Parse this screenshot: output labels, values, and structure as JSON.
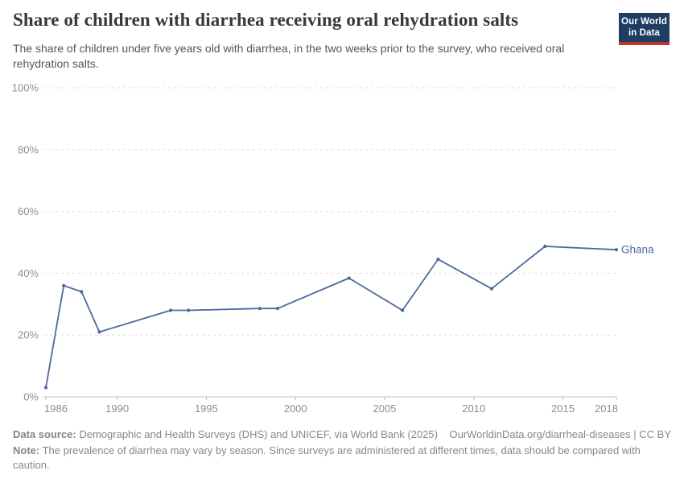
{
  "header": {
    "title": "Share of children with diarrhea receiving oral rehydration salts",
    "subtitle": "The share of children under five years old with diarrhea, in the two weeks prior to the survey, who received oral rehydration salts.",
    "logo": {
      "line1": "Our World",
      "line2": "in Data"
    }
  },
  "chart_data": {
    "type": "line",
    "title": "Share of children with diarrhea receiving oral rehydration salts",
    "x": [
      1986,
      1987,
      1988,
      1989,
      1993,
      1994,
      1998,
      1999,
      2003,
      2006,
      2008,
      2011,
      2014,
      2018
    ],
    "series": [
      {
        "name": "Ghana",
        "values": [
          3,
          36,
          34,
          21,
          28,
          28,
          28.6,
          28.6,
          38.4,
          28,
          44.5,
          35,
          48.7,
          47.6
        ]
      }
    ],
    "xlabel": "",
    "ylabel": "",
    "xlim": [
      1986,
      2018
    ],
    "ylim": [
      0,
      100
    ],
    "x_ticks": [
      1986,
      1990,
      1995,
      2000,
      2005,
      2010,
      2015,
      2018
    ],
    "y_ticks": [
      0,
      20,
      40,
      60,
      80,
      100
    ],
    "y_tick_suffix": "%",
    "grid": "horizontal-dashed",
    "legend_position": "end-of-line-label",
    "end_label": "Ghana"
  },
  "footer": {
    "datasource_label": "Data source:",
    "datasource_text": " Demographic and Health Surveys (DHS) and UNICEF, via World Bank (2025)",
    "attribution": "OurWorldinData.org/diarrheal-diseases | CC BY",
    "note_label": "Note:",
    "note_text": " The prevalence of diarrhea may vary by season. Since surveys are administered at different times, data should be compared with caution."
  },
  "colors": {
    "accent_line": "#4C6A9C",
    "logo_bg": "#1d3d63",
    "logo_red": "#c0352b",
    "grid": "#dedede",
    "axis": "#bcbcbc",
    "tick_label": "#8e8e8e",
    "title": "#383838",
    "subtitle": "#565656",
    "footer": "#878787"
  }
}
